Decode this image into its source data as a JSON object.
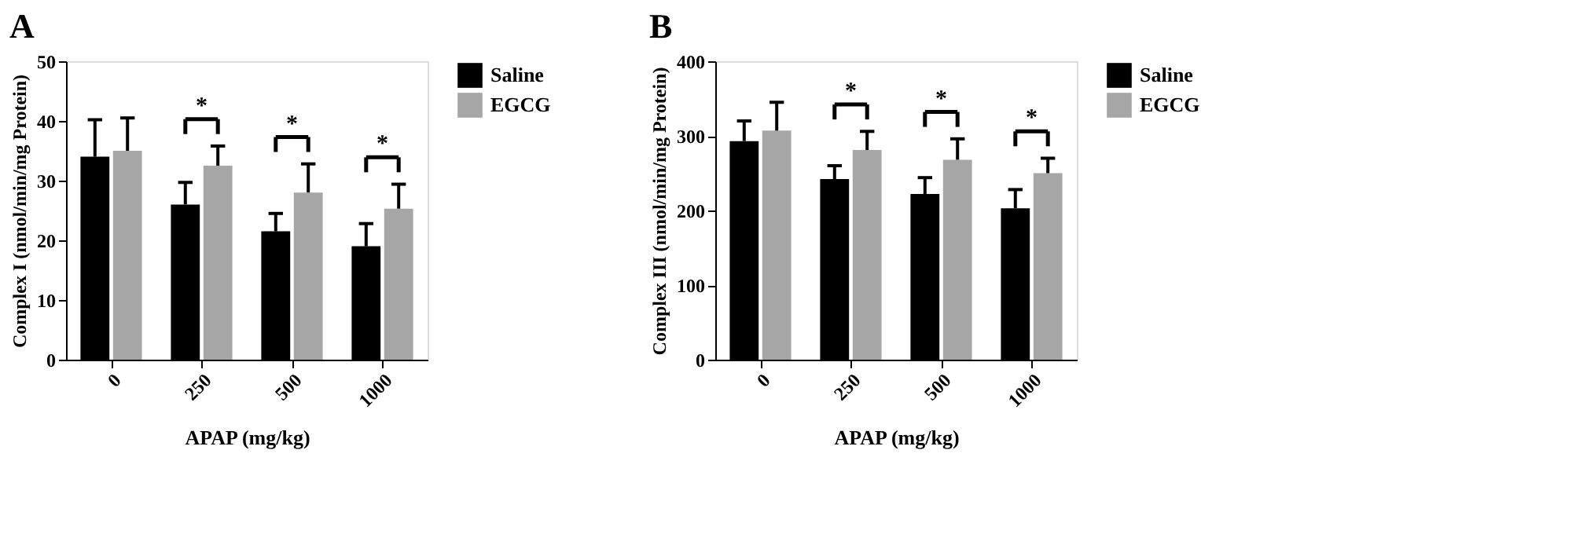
{
  "chart_data": [
    {
      "type": "bar",
      "title": "A",
      "xlabel": "APAP (mg/kg)",
      "ylabel": "Complex I (nmol/min/mg Protein)",
      "categories": [
        "0",
        "250",
        "500",
        "1000"
      ],
      "ylim": [
        0,
        50
      ],
      "yticks": [
        0,
        10,
        20,
        30,
        40,
        50
      ],
      "grid": false,
      "legend": "right",
      "series": [
        {
          "name": "Saline",
          "color": "#000000",
          "values": [
            34,
            26,
            21.5,
            19
          ],
          "errors": [
            [
              34,
              40.2
            ],
            [
              26,
              29.7
            ],
            [
              21.5,
              24.5
            ],
            [
              19,
              22.8
            ]
          ]
        },
        {
          "name": "EGCG",
          "color": "#a6a6a6",
          "values": [
            35,
            32.5,
            28,
            25.3
          ],
          "errors": [
            [
              35,
              40.5
            ],
            [
              32.5,
              35.8
            ],
            [
              28,
              32.8
            ],
            [
              25.3,
              29.4
            ]
          ]
        }
      ],
      "annotations": [
        "*",
        "*",
        "*"
      ]
    },
    {
      "type": "bar",
      "title": "B",
      "xlabel": "APAP (mg/kg)",
      "ylabel": "Complex III (nmol/min/mg Protein)",
      "categories": [
        "0",
        "250",
        "500",
        "1000"
      ],
      "ylim": [
        0,
        400
      ],
      "yticks": [
        0,
        100,
        200,
        300,
        400
      ],
      "grid": false,
      "legend": "right",
      "series": [
        {
          "name": "Saline",
          "color": "#000000",
          "values": [
            293,
            242,
            222,
            203
          ],
          "errors": [
            [
              293,
              320
            ],
            [
              242,
              260
            ],
            [
              222,
              244
            ],
            [
              203,
              228
            ]
          ]
        },
        {
          "name": "EGCG",
          "color": "#a6a6a6",
          "values": [
            307,
            281,
            268,
            250
          ],
          "errors": [
            [
              307,
              345
            ],
            [
              281,
              306
            ],
            [
              268,
              296
            ],
            [
              250,
              270
            ]
          ]
        }
      ],
      "annotations": [
        "*",
        "*",
        "*"
      ]
    }
  ]
}
